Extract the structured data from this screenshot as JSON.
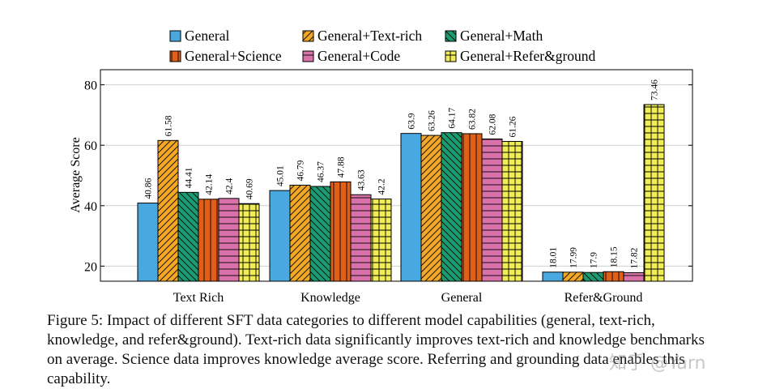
{
  "chart_data": {
    "type": "bar",
    "categories": [
      "Text Rich",
      "Knowledge",
      "General",
      "Refer&Ground"
    ],
    "ylabel": "Average Score",
    "xlabel": "",
    "ylim": [
      15,
      85
    ],
    "yticks": [
      20,
      40,
      60,
      80
    ],
    "grid": "horizontal",
    "legend_position": "top",
    "series": [
      {
        "name": "General",
        "color": "#4aa8e0",
        "pattern": "solid",
        "values": [
          40.86,
          45.01,
          63.9,
          18.01
        ],
        "labels": [
          "40.86",
          "45.01",
          "63.9",
          "18.01"
        ]
      },
      {
        "name": "General+Text-rich",
        "color": "#f2a825",
        "pattern": "diagonal",
        "values": [
          61.58,
          46.79,
          63.26,
          17.99
        ],
        "labels": [
          "61.58",
          "46.79",
          "63.26",
          "17.99"
        ]
      },
      {
        "name": "General+Math",
        "color": "#1a9c72",
        "pattern": "backdiagonal",
        "values": [
          44.41,
          46.37,
          64.17,
          17.9
        ],
        "labels": [
          "44.41",
          "46.37",
          "64.17",
          "17.9"
        ]
      },
      {
        "name": "General+Science",
        "color": "#e0601a",
        "pattern": "vertical",
        "values": [
          42.14,
          47.88,
          63.82,
          18.15
        ],
        "labels": [
          "42.14",
          "47.88",
          "63.82",
          "18.15"
        ]
      },
      {
        "name": "General+Code",
        "color": "#d872a8",
        "pattern": "horizontal",
        "values": [
          42.4,
          43.63,
          62.08,
          17.82
        ],
        "labels": [
          "42.4",
          "43.63",
          "62.08",
          "17.82"
        ]
      },
      {
        "name": "General+Refer&ground",
        "color": "#f0ec58",
        "pattern": "grid",
        "values": [
          40.69,
          42.2,
          61.26,
          73.46
        ],
        "labels": [
          "40.69",
          "42.2",
          "61.26",
          "73.46"
        ]
      }
    ]
  },
  "caption": "Figure 5: Impact of different SFT data categories to different model capabilities (general, text-rich, knowledge, and refer&ground). Text-rich data significantly improves text-rich and knowledge benchmarks on average. Science data improves knowledge average score. Referring and grounding data enables this capability.",
  "watermark": "知乎 @Yarn"
}
